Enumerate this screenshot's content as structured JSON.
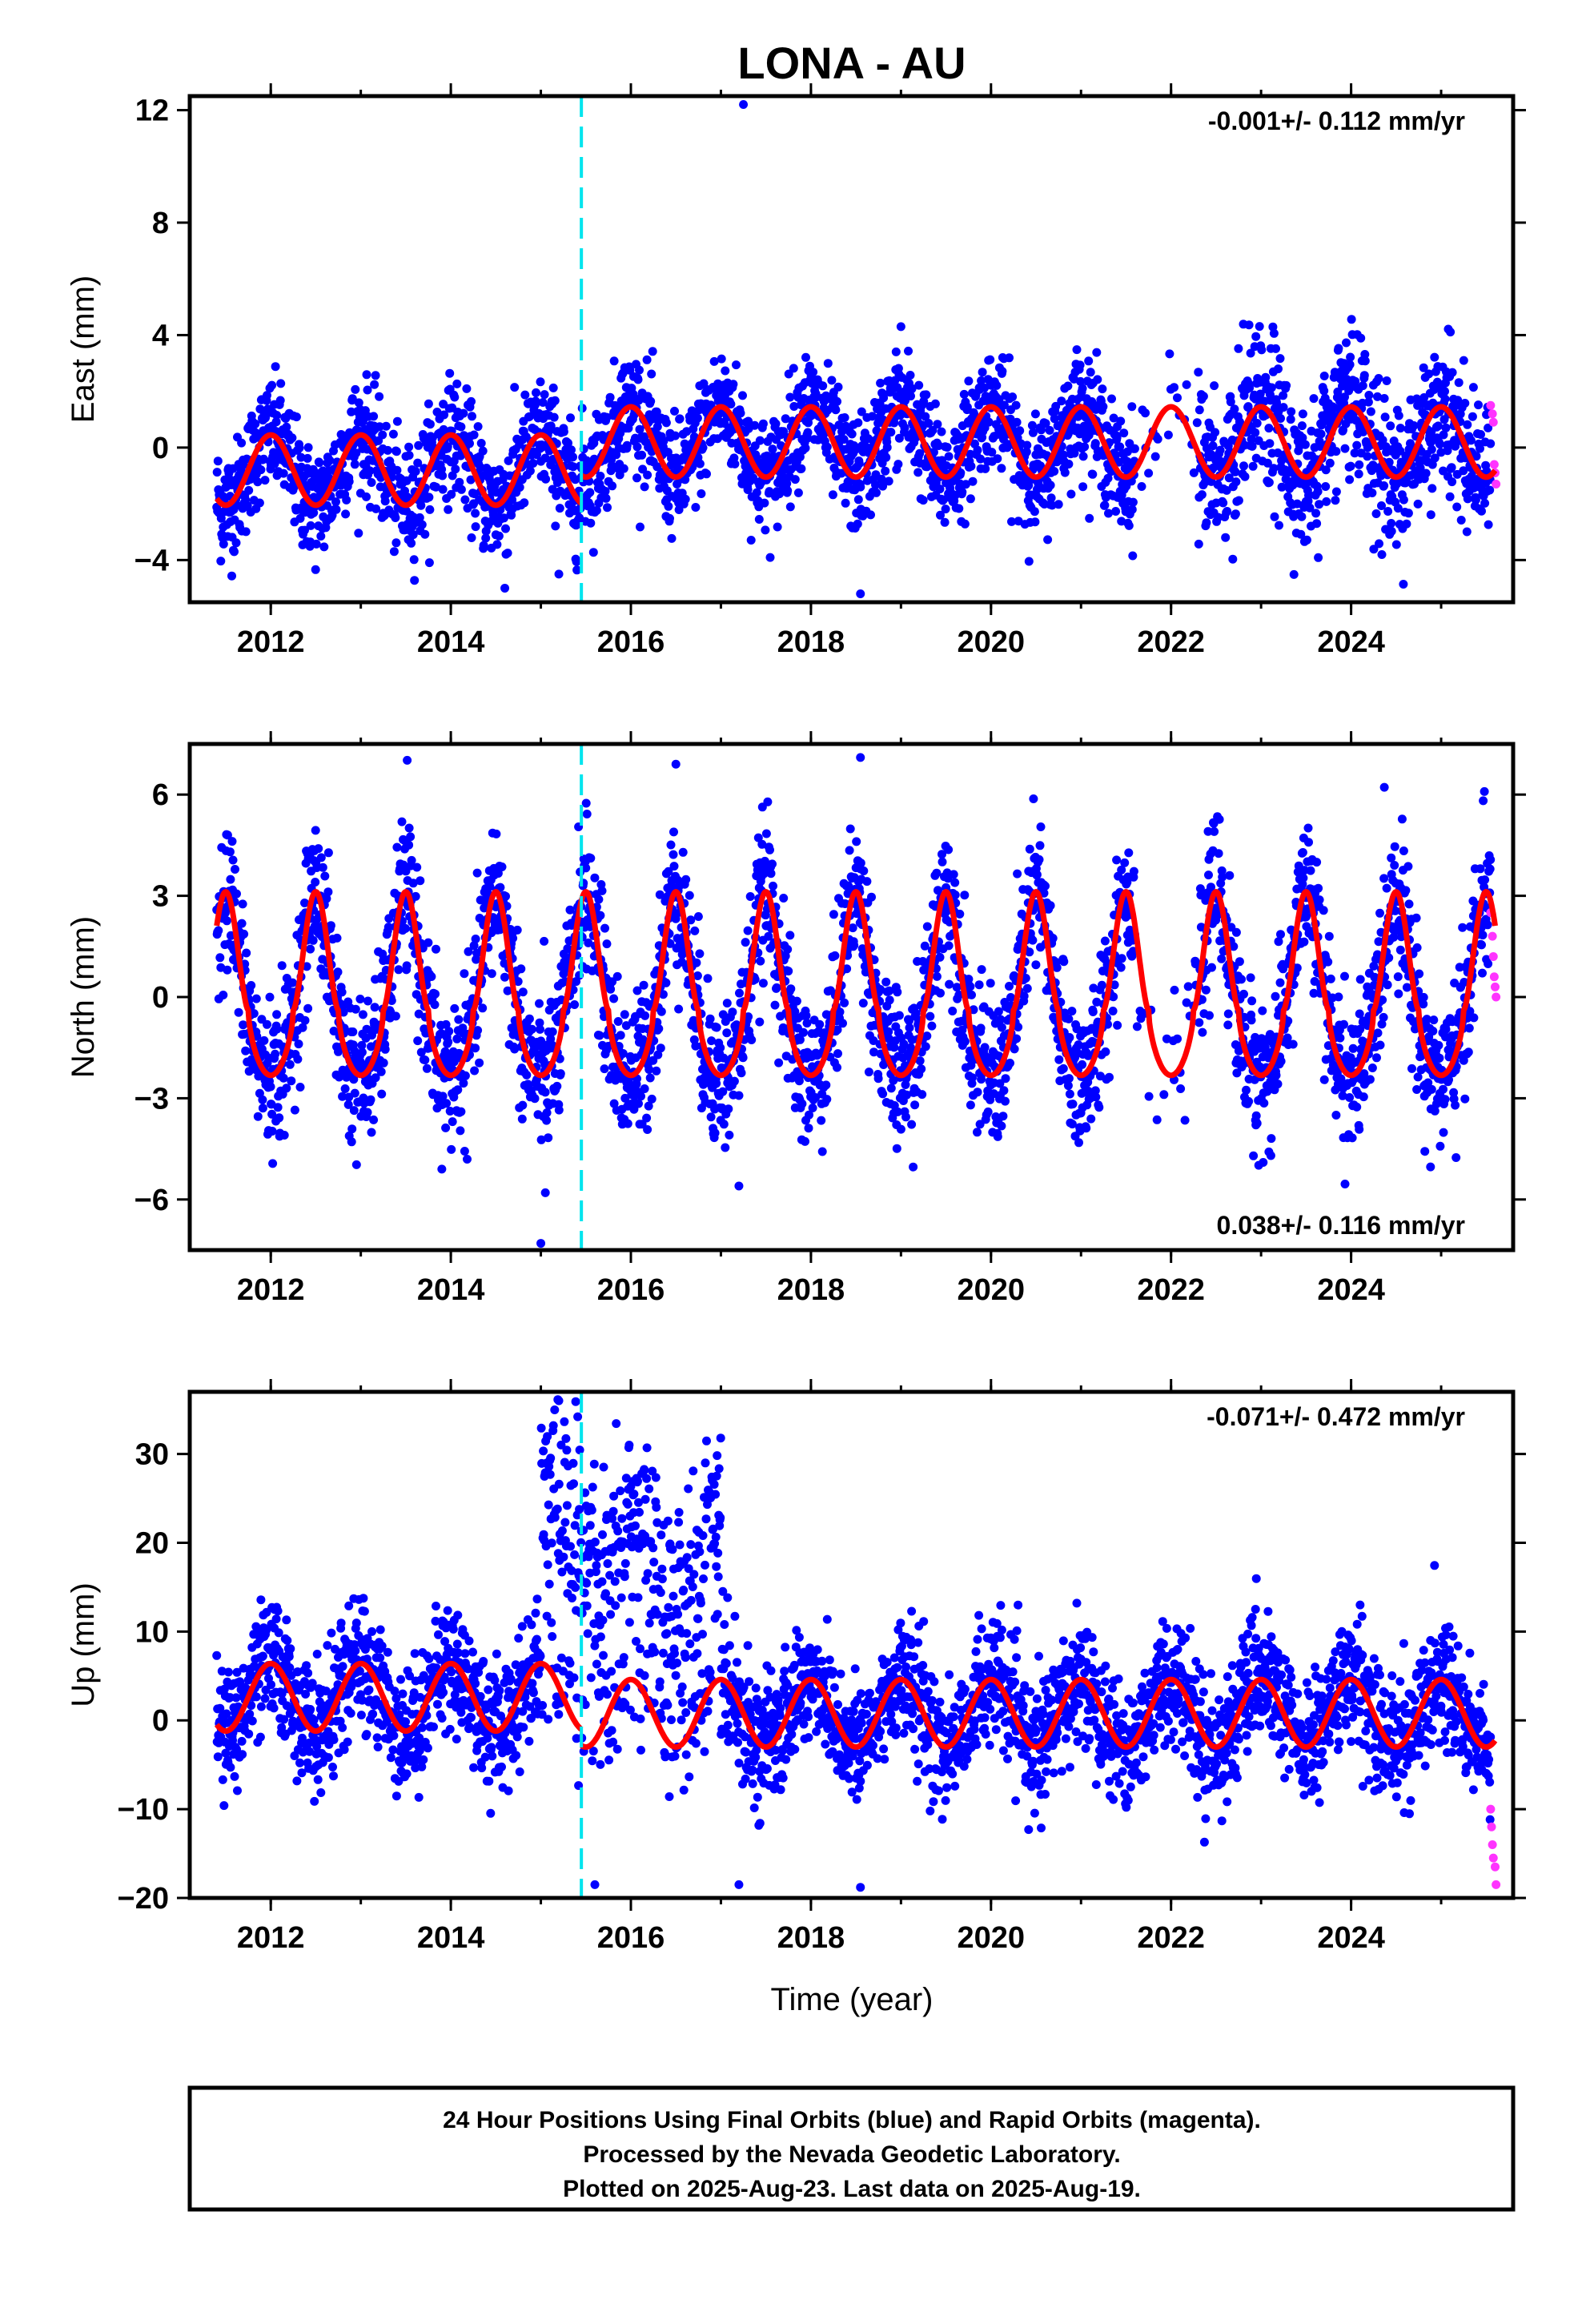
{
  "chart_data": {
    "type": "scatter",
    "title": "LONA - AU",
    "xlabel": "Time (year)",
    "xlim": [
      2011.1,
      2025.8
    ],
    "x_ticks": [
      2012,
      2014,
      2016,
      2018,
      2020,
      2022,
      2024
    ],
    "offset_epoch": 2015.45,
    "colors": {
      "final": "#0000ff",
      "rapid": "#ff33ff",
      "model": "#ff0000",
      "offset": "#00e5ee"
    },
    "panels": [
      {
        "name": "east",
        "ylabel": "East (mm)",
        "ylim": [
          -5.5,
          12.5
        ],
        "y_ticks": [
          -4,
          0,
          4,
          8,
          12
        ],
        "rate_text": "-0.001+/- 0.112 mm/yr",
        "rate_position": "top-right",
        "model": {
          "period_year": 1.0,
          "segments": [
            {
              "t0": 2011.4,
              "t1": 2015.45,
              "offset": -0.8,
              "amplitude": 1.25,
              "peak_phase": 0.0
            },
            {
              "t0": 2015.45,
              "t1": 2025.6,
              "offset": 0.2,
              "amplitude": 1.25,
              "peak_phase": 0.0
            }
          ]
        },
        "scatter_spread": 1.0,
        "bursts": [
          {
            "t0": 2022.3,
            "t1": 2025.3,
            "extra": 0.9
          }
        ],
        "outliers": [
          [
            2017.25,
            12.2
          ],
          [
            2018.55,
            -5.2
          ],
          [
            2014.6,
            -5.0
          ],
          [
            2019.0,
            4.3
          ],
          [
            2015.2,
            -4.5
          ]
        ],
        "rapid_points": [
          [
            2025.55,
            1.5
          ],
          [
            2025.57,
            1.2
          ],
          [
            2025.58,
            0.9
          ],
          [
            2025.59,
            -0.6
          ],
          [
            2025.6,
            -0.9
          ],
          [
            2025.61,
            -1.3
          ]
        ]
      },
      {
        "name": "north",
        "ylabel": "North (mm)",
        "ylim": [
          -7.5,
          7.5
        ],
        "y_ticks": [
          -6,
          -3,
          0,
          3,
          6
        ],
        "rate_text": "0.038+/- 0.116 mm/yr",
        "rate_position": "bottom-right",
        "model": {
          "period_year": 1.0,
          "shape": "peaked",
          "segments": [
            {
              "t0": 2011.4,
              "t1": 2015.45,
              "offset": 0.0,
              "amplitude": 2.6,
              "peak_phase": 0.5
            },
            {
              "t0": 2015.45,
              "t1": 2025.6,
              "offset": 0.0,
              "amplitude": 2.6,
              "peak_phase": 0.5
            }
          ]
        },
        "scatter_spread": 1.1,
        "outliers": [
          [
            2018.55,
            7.1
          ],
          [
            2016.5,
            6.9
          ],
          [
            2015.0,
            -7.3
          ],
          [
            2013.9,
            -5.1
          ],
          [
            2017.2,
            -5.6
          ],
          [
            2015.05,
            -5.8
          ]
        ],
        "rapid_points": [
          [
            2025.55,
            2.5
          ],
          [
            2025.57,
            1.8
          ],
          [
            2025.58,
            1.2
          ],
          [
            2025.59,
            0.6
          ],
          [
            2025.6,
            0.3
          ],
          [
            2025.61,
            0.0
          ]
        ]
      },
      {
        "name": "up",
        "ylabel": "Up (mm)",
        "ylim": [
          -20,
          37
        ],
        "y_ticks": [
          -20,
          -10,
          0,
          10,
          20,
          30
        ],
        "rate_text": "-0.071+/- 0.472 mm/yr",
        "rate_position": "top-right",
        "model": {
          "period_year": 1.0,
          "segments": [
            {
              "t0": 2011.4,
              "t1": 2015.45,
              "offset": 2.6,
              "amplitude": 3.8,
              "peak_phase": 0.0
            },
            {
              "t0": 2015.45,
              "t1": 2025.6,
              "offset": 0.8,
              "amplitude": 3.8,
              "peak_phase": 0.0
            }
          ]
        },
        "scatter_spread": 3.5,
        "bursts": [
          {
            "t0": 2015.0,
            "t1": 2015.6,
            "extra_mean": 22,
            "extra_spread": 6
          },
          {
            "t0": 2015.6,
            "t1": 2017.0,
            "extra_mean": 16,
            "extra_spread": 5
          }
        ],
        "outliers": [
          [
            2015.2,
            36
          ],
          [
            2017.2,
            -18.5
          ],
          [
            2018.55,
            -18.8
          ],
          [
            2015.6,
            -18.5
          ],
          [
            2024.1,
            13
          ]
        ],
        "rapid_points": [
          [
            2025.55,
            -10
          ],
          [
            2025.56,
            -12
          ],
          [
            2025.57,
            -14
          ],
          [
            2025.58,
            -15.5
          ],
          [
            2025.6,
            -16.5
          ],
          [
            2025.61,
            -18.5
          ]
        ]
      }
    ],
    "caption": [
      "24 Hour Positions Using Final Orbits (blue) and Rapid Orbits (magenta).",
      "Processed by the Nevada Geodetic Laboratory.",
      "Plotted on 2025-Aug-23. Last data on 2025-Aug-19."
    ]
  }
}
